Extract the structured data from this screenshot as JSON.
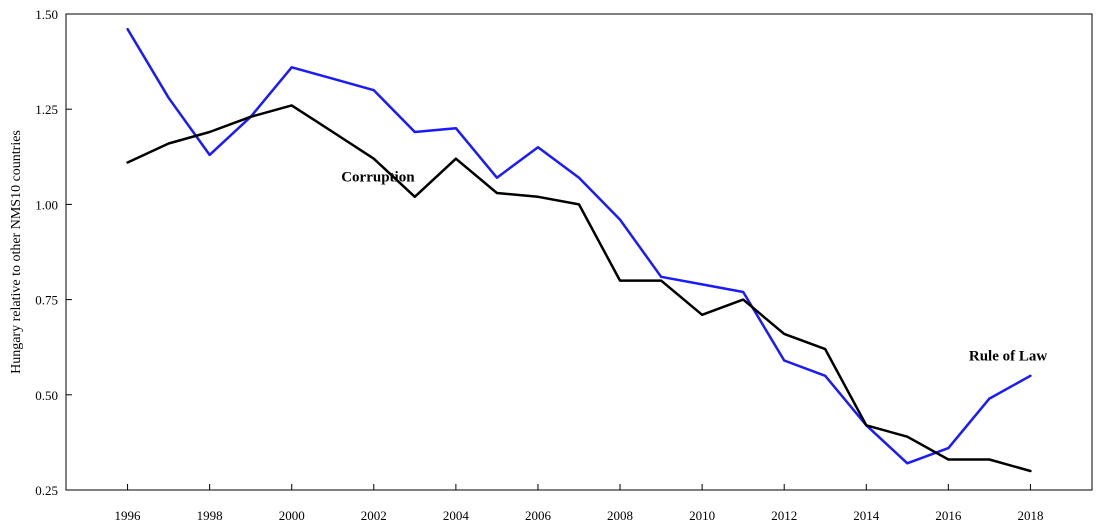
{
  "chart_data": {
    "type": "line",
    "title": "",
    "xlabel": "",
    "ylabel": "Hungary relative to other NMS10 countries",
    "xlim": [
      1994.5,
      2019.5
    ],
    "ylim": [
      0.25,
      1.5
    ],
    "x_ticks": [
      "1996",
      "1998",
      "2000",
      "2002",
      "2004",
      "2006",
      "2008",
      "2010",
      "2012",
      "2014",
      "2016",
      "2018"
    ],
    "y_ticks": [
      "0.25",
      "0.50",
      "0.75",
      "1.00",
      "1.25",
      "1.50"
    ],
    "grid": false,
    "legend": "none",
    "x": [
      1996,
      1997,
      1998,
      1999,
      2000,
      2001,
      2002,
      2003,
      2004,
      2005,
      2006,
      2007,
      2008,
      2009,
      2010,
      2011,
      2012,
      2013,
      2014,
      2015,
      2016,
      2017,
      2018
    ],
    "series": [
      {
        "name": "Rule of Law",
        "color": "#1a1aff",
        "values": [
          1.46,
          1.28,
          1.13,
          1.23,
          1.36,
          1.33,
          1.3,
          1.19,
          1.2,
          1.07,
          1.15,
          1.07,
          0.96,
          0.81,
          0.79,
          0.77,
          0.59,
          0.55,
          0.42,
          0.32,
          0.36,
          0.49,
          0.55
        ]
      },
      {
        "name": "Corruption",
        "color": "#000000",
        "values": [
          1.11,
          1.16,
          1.19,
          1.23,
          1.26,
          1.19,
          1.12,
          1.02,
          1.12,
          1.03,
          1.02,
          1.0,
          0.8,
          0.8,
          0.71,
          0.75,
          0.66,
          0.62,
          0.42,
          0.39,
          0.33,
          0.33,
          0.3
        ]
      }
    ],
    "annotations": [
      {
        "text": "Corruption",
        "series": "Corruption"
      },
      {
        "text": "Rule of Law",
        "series": "Rule of Law"
      }
    ]
  }
}
